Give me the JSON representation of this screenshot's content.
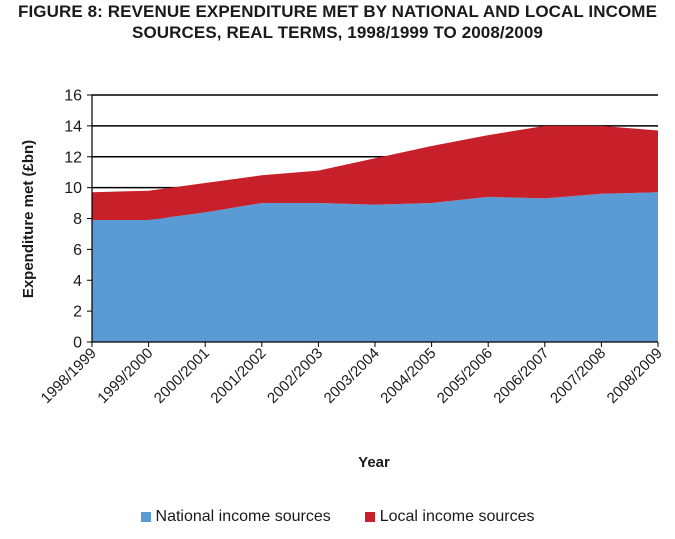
{
  "title_line1": "FIGURE 8: REVENUE EXPENDITURE MET BY NATIONAL AND LOCAL INCOME",
  "title_line2": "SOURCES, REAL TERMS, 1998/1999 TO 2008/2009",
  "chart_data": {
    "type": "area",
    "stacked": true,
    "categories": [
      "1998/1999",
      "1999/2000",
      "2000/2001",
      "2001/2002",
      "2002/2003",
      "2003/2004",
      "2004/2005",
      "2005/2006",
      "2006/2007",
      "2007/2008",
      "2008/2009"
    ],
    "series": [
      {
        "name": "National income sources",
        "color": "#5b9bd5",
        "values": [
          7.9,
          7.9,
          8.4,
          9.0,
          9.0,
          8.9,
          9.0,
          9.4,
          9.3,
          9.6,
          9.7
        ]
      },
      {
        "name": "Local income sources",
        "color": "#c8202a",
        "values": [
          1.8,
          1.9,
          1.9,
          1.8,
          2.1,
          3.0,
          3.7,
          4.0,
          4.7,
          4.4,
          4.0
        ]
      }
    ],
    "xlabel": "Year",
    "ylabel": "Expenditure met (£bn)",
    "ylim": [
      0,
      16
    ],
    "yticks": [
      "0",
      "2",
      "4",
      "6",
      "8",
      "10",
      "12",
      "14",
      "16"
    ],
    "grid": true,
    "legend_position": "bottom"
  }
}
